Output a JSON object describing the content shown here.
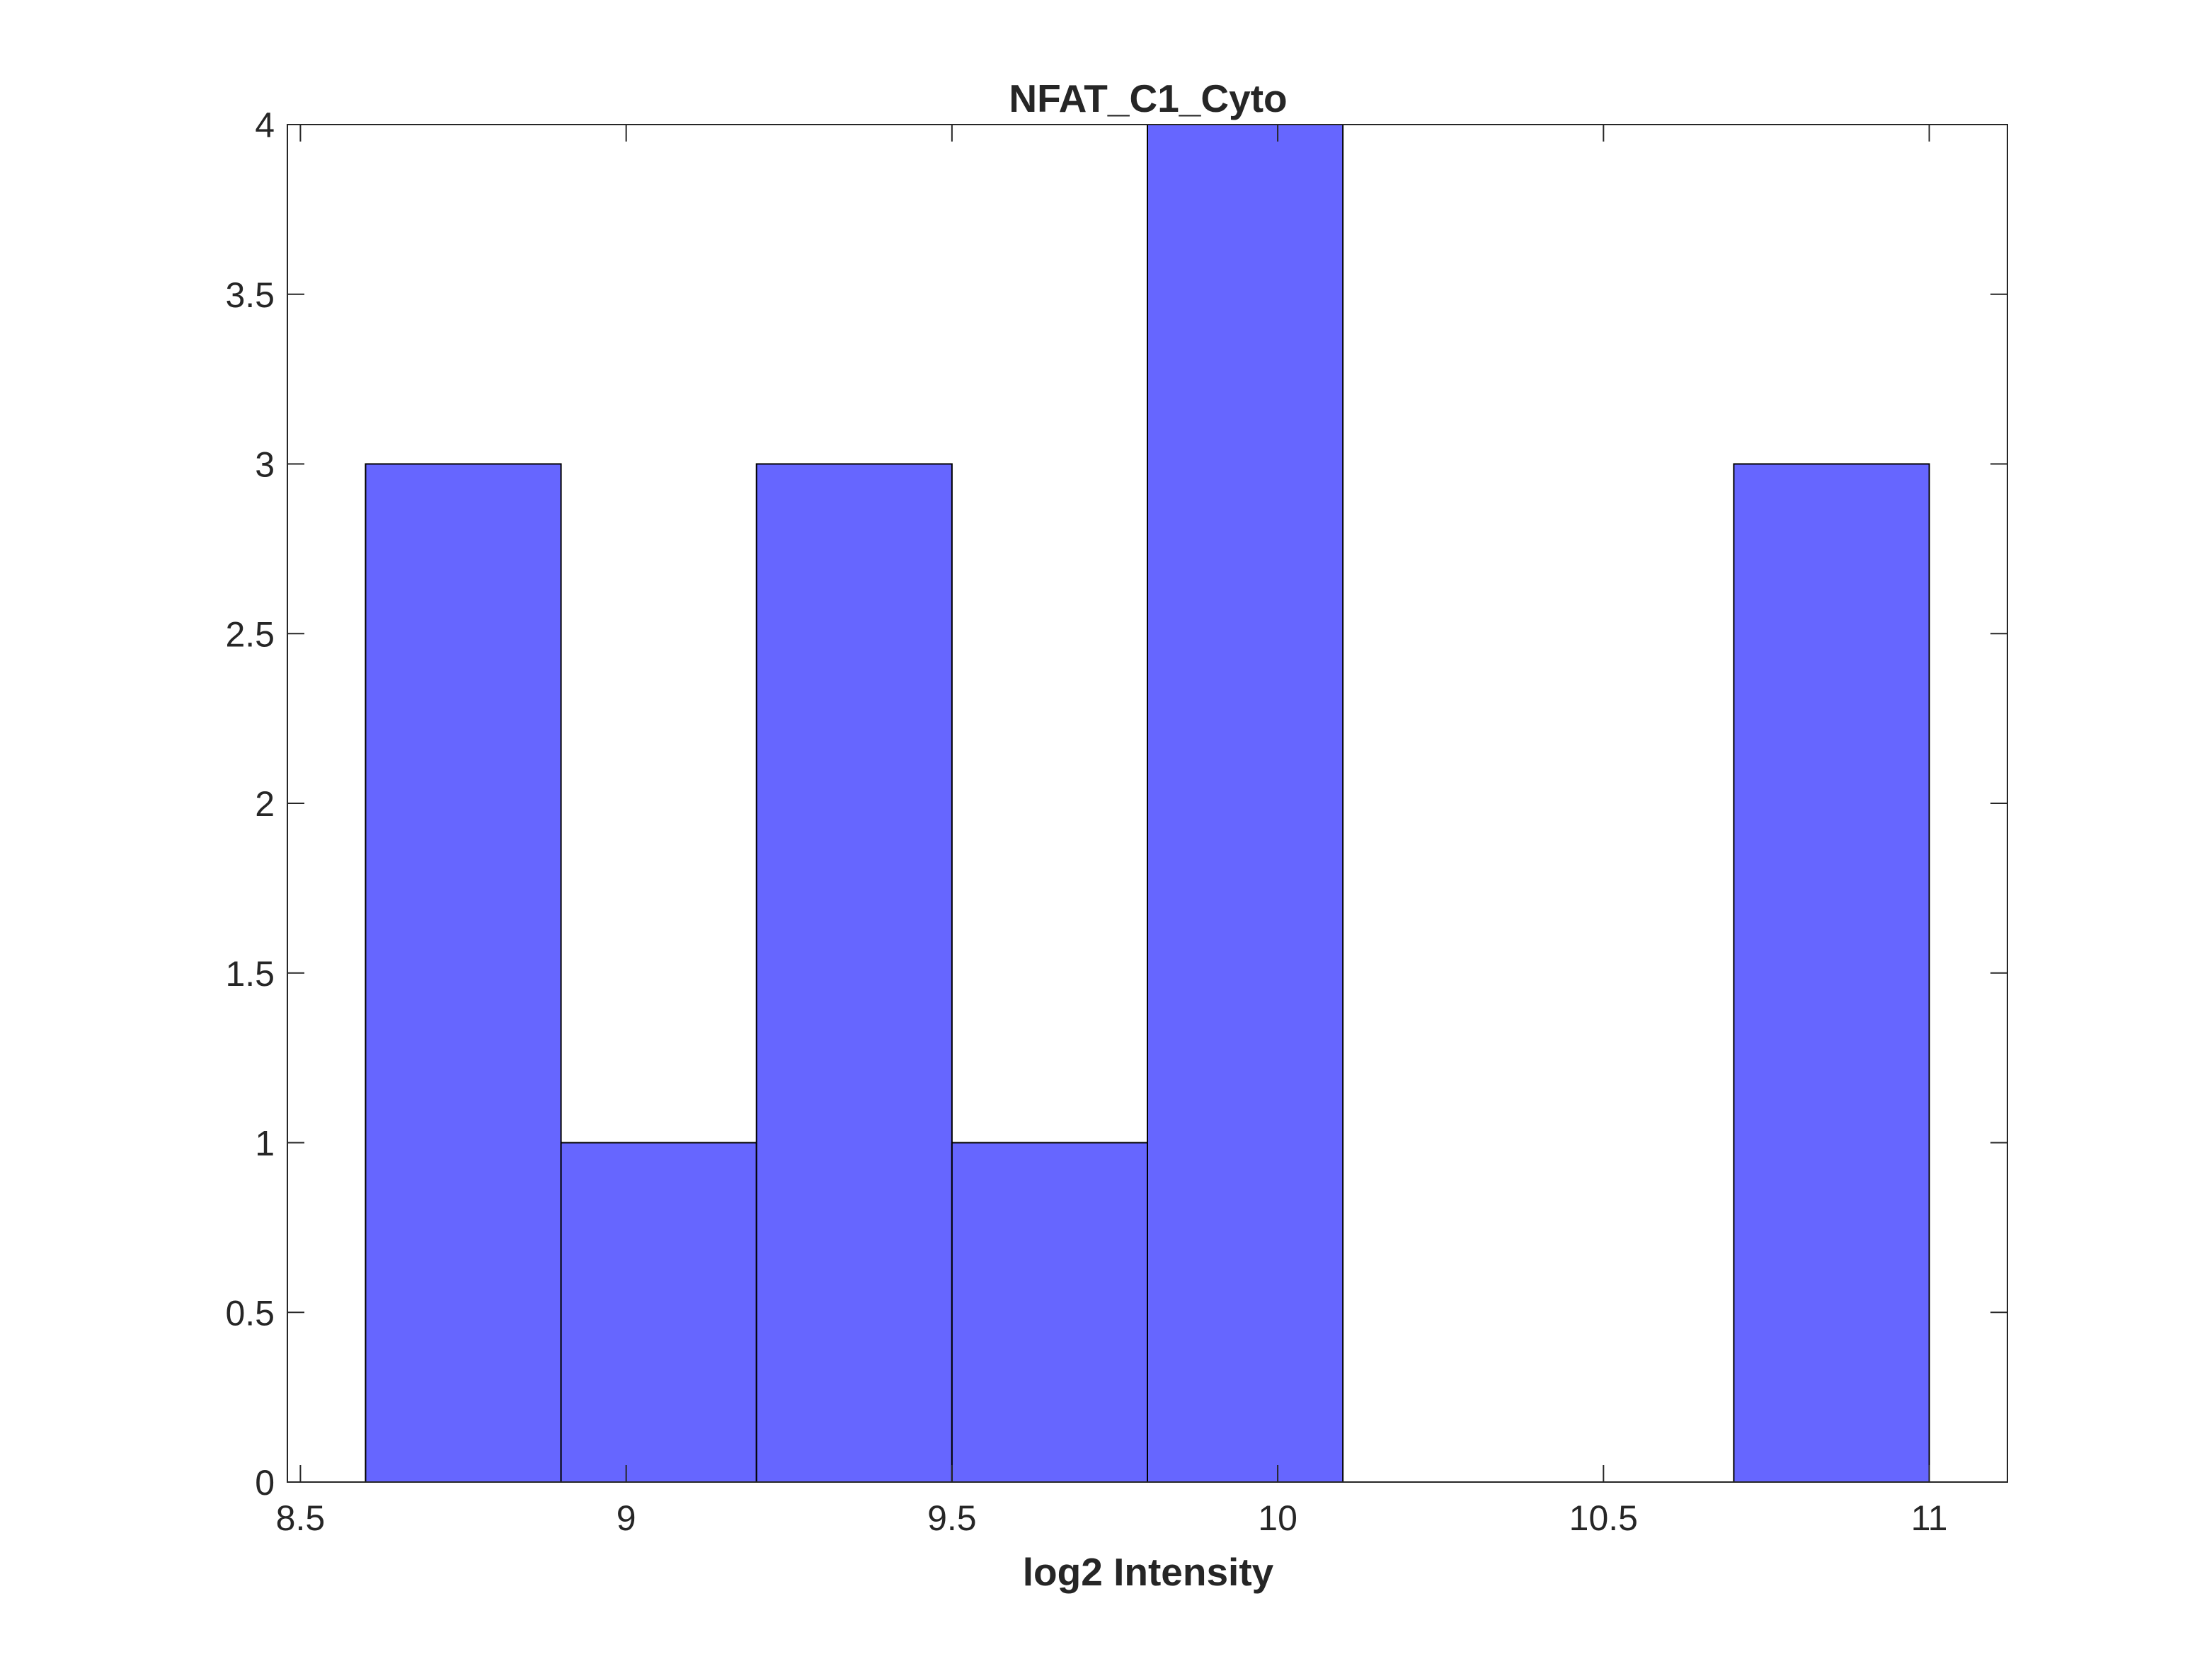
{
  "chart_data": {
    "type": "bar",
    "title": "NFAT_C1_Cyto",
    "xlabel": "log2 Intensity",
    "ylabel": "",
    "xlim": [
      8.48,
      11.12
    ],
    "ylim": [
      0,
      4
    ],
    "xticks": [
      8.5,
      9,
      9.5,
      10,
      10.5,
      11
    ],
    "xtick_labels": [
      "8.5",
      "9",
      "9.5",
      "10",
      "10.5",
      "11"
    ],
    "yticks": [
      0,
      0.5,
      1,
      1.5,
      2,
      2.5,
      3,
      3.5,
      4
    ],
    "ytick_labels": [
      "0",
      "0.5",
      "1",
      "1.5",
      "2",
      "2.5",
      "3",
      "3.5",
      "4"
    ],
    "bins": [
      {
        "start": 8.6,
        "end": 8.9,
        "count": 3
      },
      {
        "start": 8.9,
        "end": 9.2,
        "count": 1
      },
      {
        "start": 9.2,
        "end": 9.5,
        "count": 3
      },
      {
        "start": 9.5,
        "end": 9.8,
        "count": 1
      },
      {
        "start": 9.8,
        "end": 10.1,
        "count": 4
      },
      {
        "start": 10.1,
        "end": 10.4,
        "count": 0
      },
      {
        "start": 10.4,
        "end": 10.7,
        "count": 0
      },
      {
        "start": 10.7,
        "end": 11.0,
        "count": 3
      }
    ],
    "bar_color": "#6666ff",
    "edge_color": "#000000",
    "grid": false,
    "legend": "none"
  }
}
